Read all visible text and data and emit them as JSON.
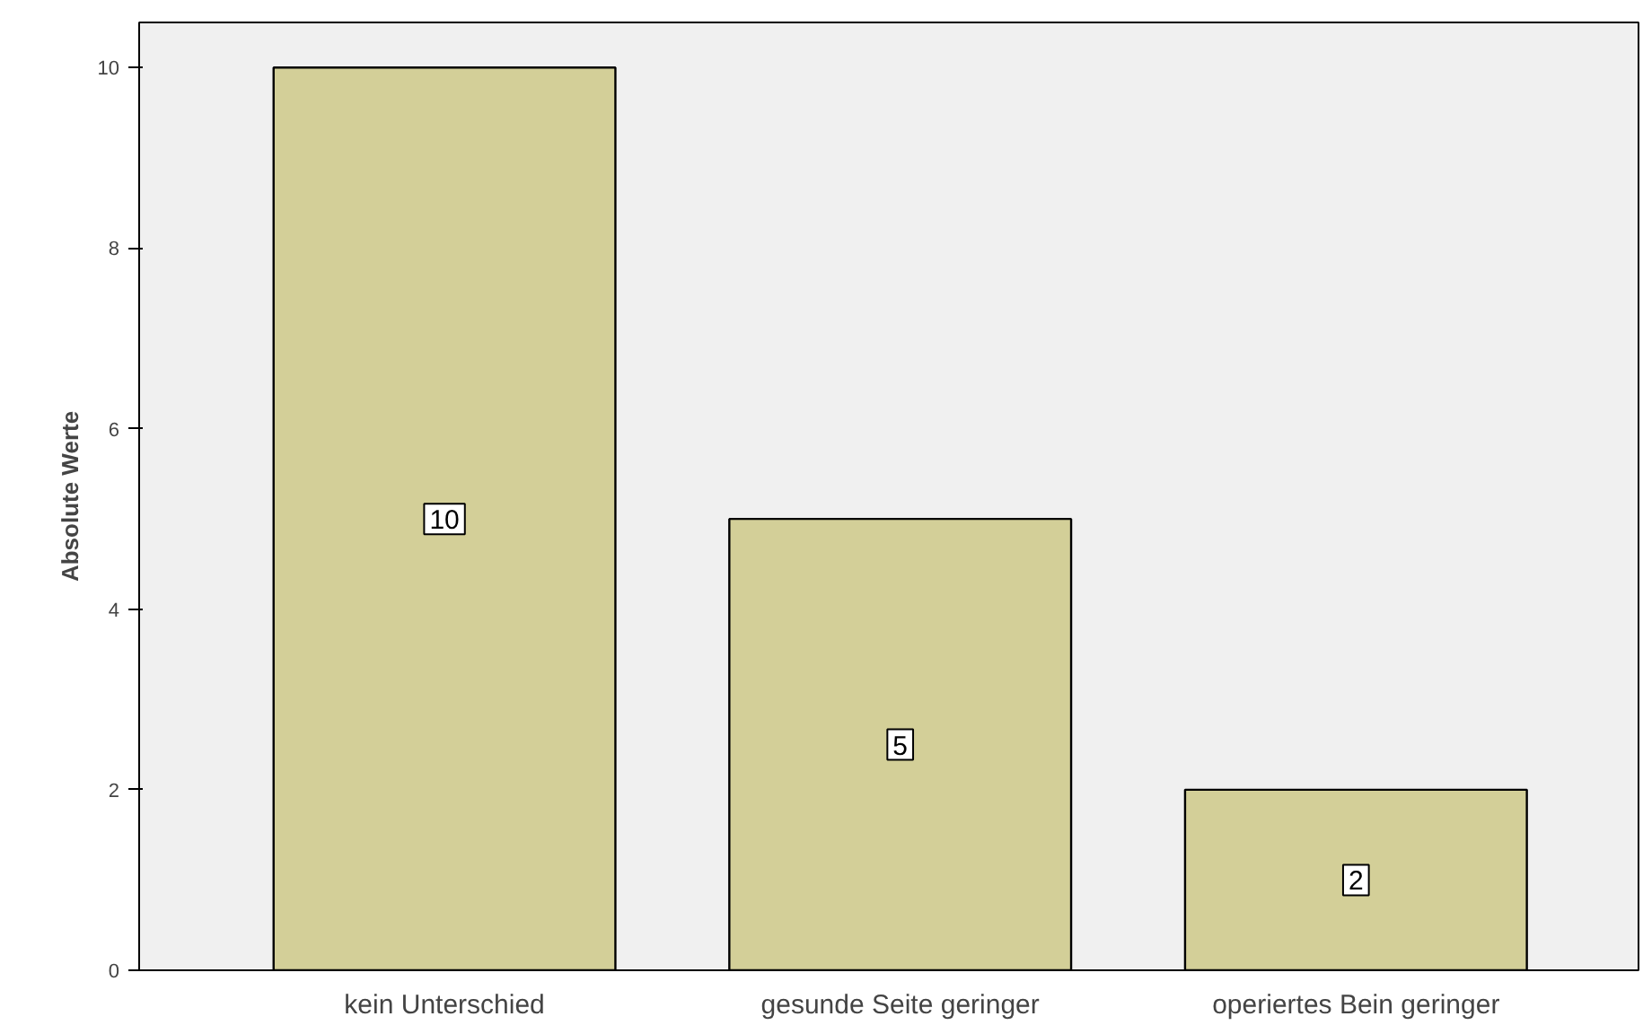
{
  "chart_data": {
    "type": "bar",
    "ylabel": "Absolute Werte",
    "categories": [
      "kein Unterschied",
      "gesunde Seite geringer",
      "operiertes Bein geringer"
    ],
    "values": [
      10,
      5,
      2
    ],
    "color": "#d3cf98",
    "ylim": [
      0,
      10.5
    ],
    "yticks": [
      0,
      2,
      4,
      6,
      8,
      10
    ],
    "grid": false,
    "data_labels": true
  }
}
